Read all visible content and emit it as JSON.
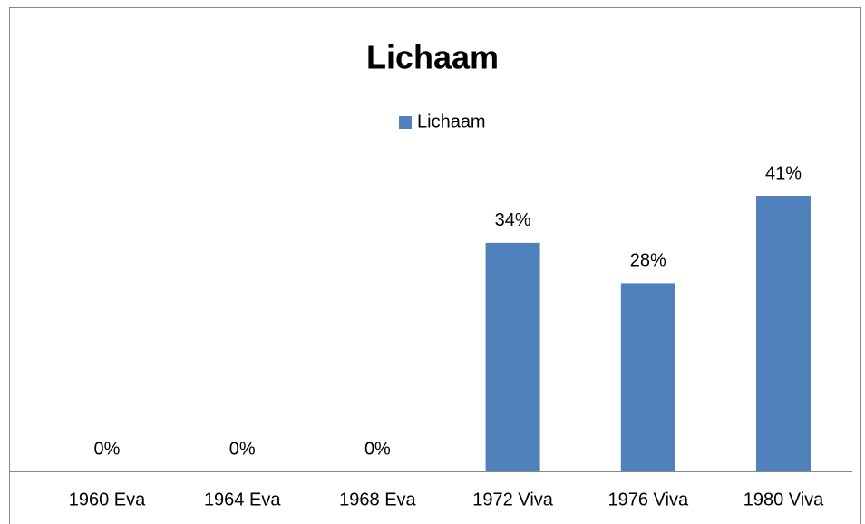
{
  "chart_data": {
    "type": "bar",
    "title": "Lichaam",
    "categories": [
      "1960 Eva",
      "1964 Eva",
      "1968 Eva",
      "1972 Viva",
      "1976 Viva",
      "1980 Viva"
    ],
    "series": [
      {
        "name": "Lichaam",
        "color": "#4f81bd",
        "values": [
          0,
          0,
          0,
          34,
          28,
          41
        ],
        "value_labels": [
          "0%",
          "0%",
          "0%",
          "34%",
          "28%",
          "41%"
        ]
      }
    ],
    "legend": "top"
  }
}
